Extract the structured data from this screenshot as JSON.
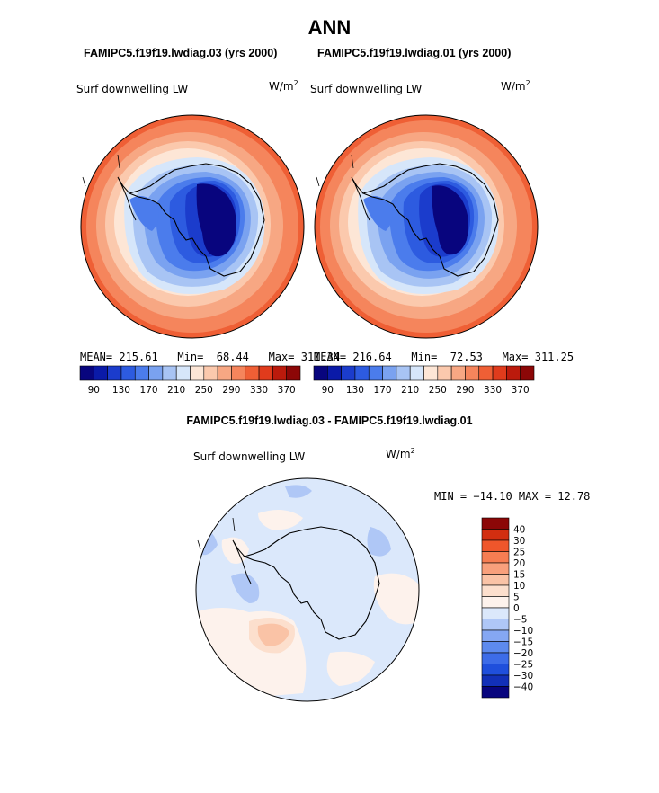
{
  "page_title": "ANN",
  "panels": [
    {
      "case_title": "FAMIPC5.f19f19.lwdiag.03 (yrs 2000)",
      "variable": "Surf downwelling LW",
      "units_base": "W/m",
      "units_exp": "2",
      "stats": {
        "mean_label": "MEAN=",
        "mean": "215.61",
        "min_label": "Min=",
        "min": "68.44",
        "max_label": "Max=",
        "max": "311.34"
      }
    },
    {
      "case_title": "FAMIPC5.f19f19.lwdiag.01 (yrs 2000)",
      "variable": "Surf downwelling LW",
      "units_base": "W/m",
      "units_exp": "2",
      "stats": {
        "mean_label": "MEAN=",
        "mean": "216.64",
        "min_label": "Min=",
        "min": "72.53",
        "max_label": "Max=",
        "max": "311.25"
      }
    }
  ],
  "diff_panel": {
    "title": "FAMIPC5.f19f19.lwdiag.03 - FAMIPC5.f19f19.lwdiag.01",
    "variable": "Surf downwelling LW",
    "units_base": "W/m",
    "units_exp": "2",
    "minmax_text": "MIN = −14.10 MAX =  12.78"
  },
  "colors": {
    "abs_palette": [
      "#08057e",
      "#0a1aa8",
      "#1b3ccc",
      "#2d5be0",
      "#4b7cec",
      "#7aa2f0",
      "#a8c4f4",
      "#d6e6fa",
      "#fde6d6",
      "#fbc9ad",
      "#f7a783",
      "#f5855c",
      "#ef5f35",
      "#e03b1c",
      "#bb1a0c",
      "#8c0707"
    ],
    "diff_palette": [
      "#08057e",
      "#1230b8",
      "#1f4fdc",
      "#3d6ce8",
      "#5d8aef",
      "#85a7f3",
      "#afc7f6",
      "#dbe8fb",
      "#fdf2ec",
      "#fcdfcd",
      "#fac3a6",
      "#f8a07c",
      "#f67d52",
      "#ef562b",
      "#d22e10",
      "#8c0707"
    ]
  },
  "chart_data": [
    {
      "type": "heatmap",
      "name_label": "",
      "title": "Surf downwelling LW",
      "colorbar_tick_labels": [
        "90",
        "130",
        "170",
        "210",
        "250",
        "290",
        "330",
        "370"
      ],
      "colorbar_levels": [
        80,
        90,
        100,
        110,
        120,
        130,
        140,
        150,
        160,
        170,
        180,
        190,
        200,
        210,
        220,
        230,
        240,
        250,
        260,
        270,
        280,
        290,
        300,
        310,
        320,
        330,
        340,
        350,
        360,
        370
      ],
      "mean": 215.61,
      "min": 68.44,
      "max": 311.34
    },
    {
      "type": "heatmap",
      "title": "Surf downwelling LW",
      "colorbar_tick_labels": [
        "90",
        "130",
        "170",
        "210",
        "250",
        "290",
        "330",
        "370"
      ],
      "mean": 216.64,
      "min": 72.53,
      "max": 311.25
    },
    {
      "type": "heatmap",
      "title": "Surf downwelling LW",
      "colorbar_tick_labels": [
        "40",
        "30",
        "25",
        "20",
        "15",
        "10",
        "5",
        "0",
        "−5",
        "−10",
        "−15",
        "−20",
        "−25",
        "−30",
        "−40"
      ],
      "min": -14.1,
      "max": 12.78
    }
  ]
}
